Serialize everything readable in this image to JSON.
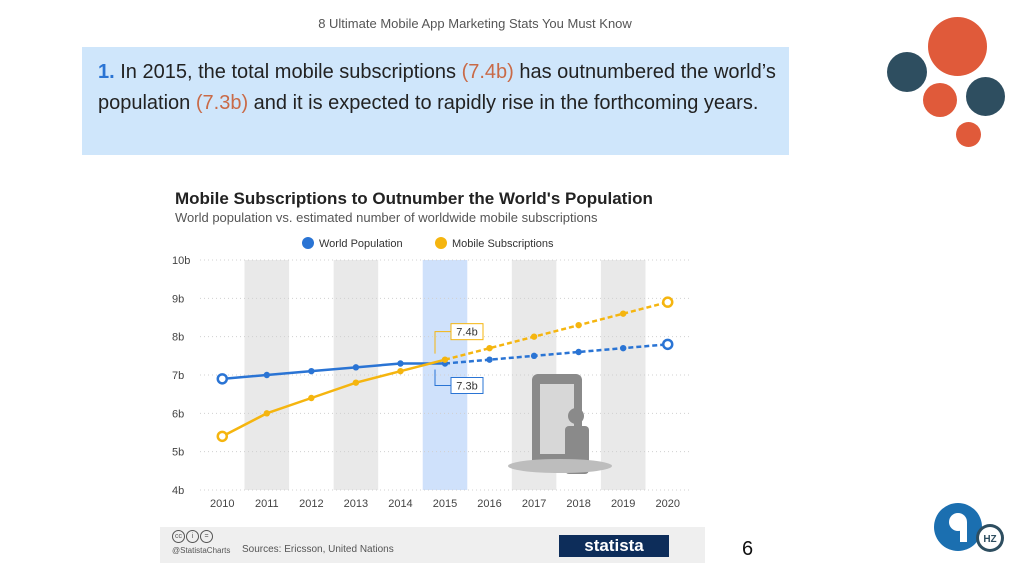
{
  "slide": {
    "title": "8 Ultimate Mobile App Marketing Stats You Must Know",
    "page_number": "6",
    "callout": {
      "number": "1.",
      "text_a": " In 2015, the total mobile subscriptions ",
      "hl_a": "(7.4b)",
      "text_b": " has outnumbered the world’s population ",
      "hl_b": "(7.3b)",
      "text_c": " and it is expected to rapidly rise in the forthcoming years."
    },
    "logo_badge": "HZ",
    "colors": {
      "callout_bg": "#cfe6fb",
      "accent_orange": "#e05a3a",
      "accent_navy": "#2e4e60"
    }
  },
  "chart_data": {
    "type": "line",
    "title": "Mobile Subscriptions to Outnumber the World's Population",
    "subtitle": "World population vs. estimated number of worldwide mobile subscriptions",
    "categories": [
      "2010",
      "2011",
      "2012",
      "2013",
      "2014",
      "2015",
      "2016",
      "2017",
      "2018",
      "2019",
      "2020"
    ],
    "ylim": [
      4,
      10
    ],
    "y_ticks": [
      "4b",
      "5b",
      "6b",
      "7b",
      "8b",
      "9b",
      "10b"
    ],
    "y_tick_values": [
      4,
      5,
      6,
      7,
      8,
      9,
      10
    ],
    "highlight_category": "2015",
    "legend_position": "top",
    "series": [
      {
        "name": "World Population",
        "color": "#2a74d4",
        "values": [
          6.9,
          7.0,
          7.1,
          7.2,
          7.3,
          7.3,
          7.4,
          7.5,
          7.6,
          7.7,
          7.8
        ],
        "projected_from": "2015"
      },
      {
        "name": "Mobile Subscriptions",
        "color": "#f5b50f",
        "values": [
          5.4,
          6.0,
          6.4,
          6.8,
          7.1,
          7.4,
          7.7,
          8.0,
          8.3,
          8.6,
          8.9
        ],
        "projected_from": "2015"
      }
    ],
    "annotations": [
      {
        "text": "7.4b",
        "category": "2015",
        "value": 7.4,
        "series": "Mobile Subscriptions"
      },
      {
        "text": "7.3b",
        "category": "2015",
        "value": 7.3,
        "series": "World Population"
      }
    ],
    "source": "Sources: Ericsson, United Nations",
    "credit": "@StatistaCharts",
    "brand": "statista"
  }
}
